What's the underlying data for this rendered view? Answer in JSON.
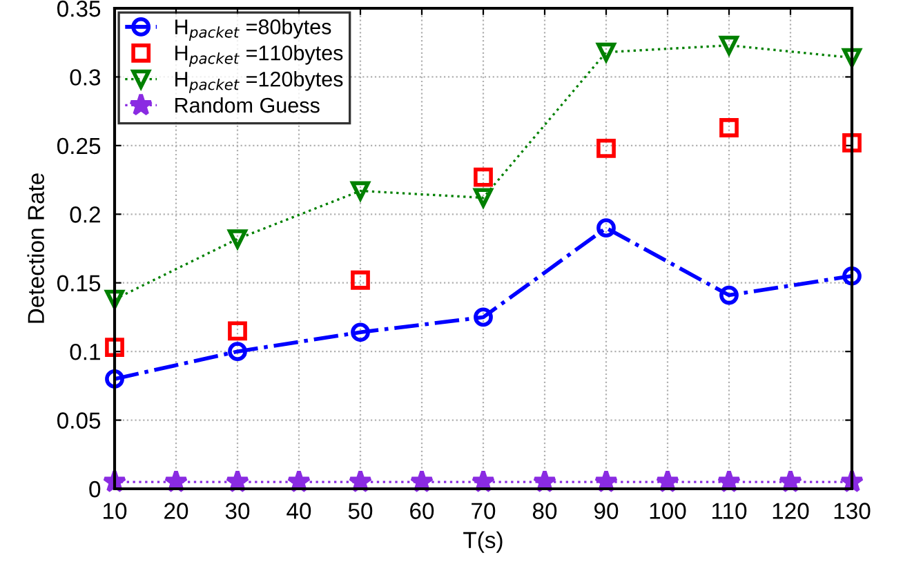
{
  "chart_data": {
    "type": "line",
    "xlabel": "T(s)",
    "ylabel": "Detection Rate",
    "xlim": [
      10,
      130
    ],
    "xticks": [
      10,
      20,
      30,
      40,
      50,
      60,
      70,
      80,
      90,
      100,
      110,
      120,
      130
    ],
    "ylim": [
      0,
      0.35
    ],
    "yticks": [
      0,
      0.05,
      0.1,
      0.15,
      0.2,
      0.25,
      0.3,
      0.35
    ],
    "grid": true,
    "legend": "top left",
    "series": [
      {
        "name": "H$_{packet}$ =80bytes",
        "color": "#0000ff",
        "marker": "circle",
        "line_style": "dashed",
        "x": [
          10,
          30,
          50,
          70,
          90,
          110,
          130
        ],
        "values": [
          0.08,
          0.1,
          0.114,
          0.125,
          0.19,
          0.141,
          0.155
        ]
      },
      {
        "name": "H$_{packet}$ =110bytes",
        "type": "scatter",
        "color": "#ff0000",
        "marker": "square",
        "x": [
          10,
          30,
          50,
          70,
          90,
          110,
          130
        ],
        "values": [
          0.103,
          0.115,
          0.152,
          0.227,
          0.248,
          0.263,
          0.252
        ]
      },
      {
        "name": "H$_{packet}$ =120bytes",
        "color": "#008000",
        "marker": "triangle",
        "line_style": "dotted",
        "x": [
          10,
          30,
          50,
          70,
          90,
          110,
          130
        ],
        "values": [
          0.138,
          0.182,
          0.217,
          0.212,
          0.318,
          0.323,
          0.314
        ]
      },
      {
        "name": "Random Guess",
        "color": "#8a2be2",
        "marker": "star",
        "line_style": "dotted",
        "x": [
          10,
          20,
          30,
          40,
          50,
          60,
          70,
          80,
          90,
          100,
          110,
          120,
          130
        ],
        "values": [
          0.005,
          0.005,
          0.005,
          0.005,
          0.005,
          0.005,
          0.005,
          0.005,
          0.005,
          0.005,
          0.005,
          0.005,
          0.005
        ]
      }
    ]
  }
}
